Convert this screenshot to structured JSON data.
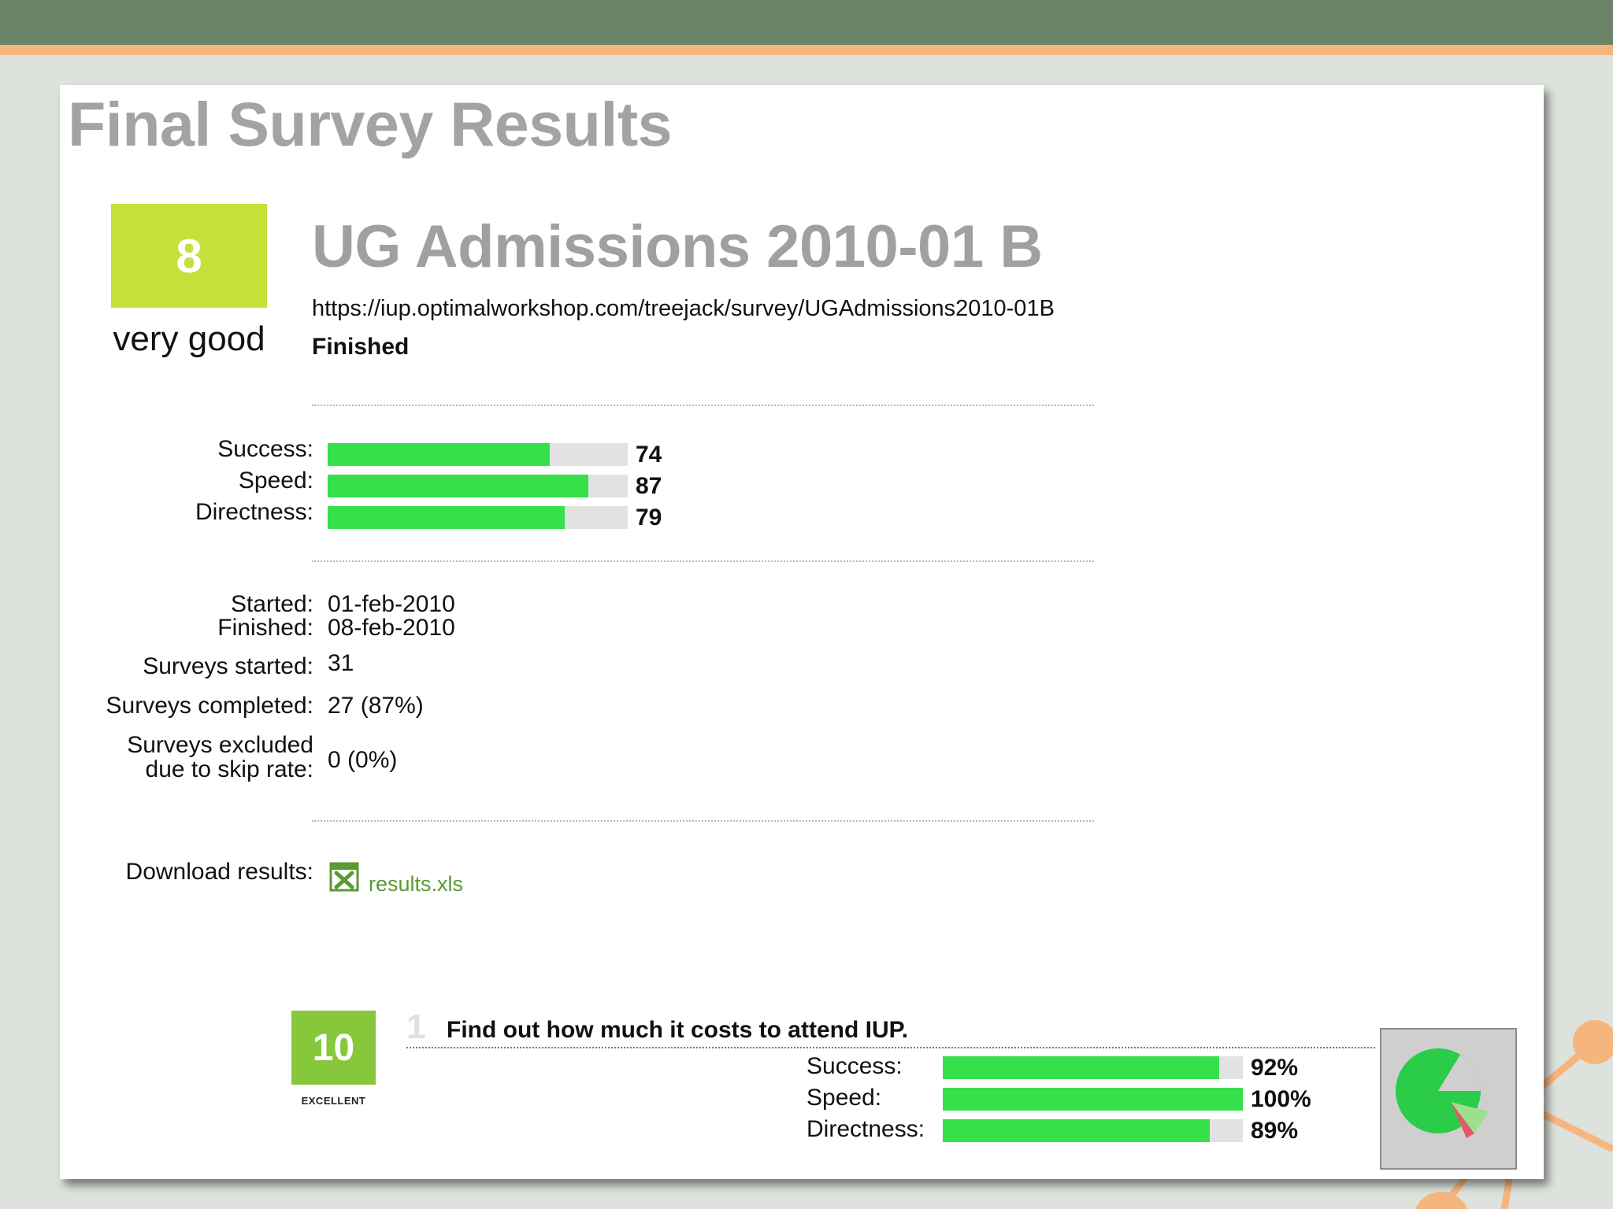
{
  "page": {
    "title": "Final Survey Results"
  },
  "survey": {
    "score": "8",
    "score_label": "very good",
    "name": "UG Admissions 2010-01 B",
    "url": "https://iup.optimalworkshop.com/treejack/survey/UGAdmissions2010-01B",
    "status": "Finished"
  },
  "metrics": [
    {
      "label": "Success:",
      "value": "74",
      "fraction": 0.74
    },
    {
      "label": "Speed:",
      "value": "87",
      "fraction": 0.87
    },
    {
      "label": "Directness:",
      "value": "79",
      "fraction": 0.79
    }
  ],
  "stats": {
    "started_label": "Started:",
    "started_value": "01-feb-2010",
    "finished_label": "Finished:",
    "finished_value": "08-feb-2010",
    "surveys_started_label": "Surveys started:",
    "surveys_started_value": "31",
    "surveys_completed_label": "Surveys completed:",
    "surveys_completed_value": "27 (87%)",
    "excluded_label_line1": "Surveys excluded",
    "excluded_label_line2": "due to skip rate:",
    "excluded_value": "0 (0%)"
  },
  "download": {
    "label": "Download results:",
    "file": "results.xls",
    "icon": "excel-file-icon"
  },
  "task": {
    "score": "10",
    "score_label": "EXCELLENT",
    "number": "1",
    "title": "Find out how much it costs to attend IUP.",
    "metrics": [
      {
        "label": "Success:",
        "value": "92%",
        "fraction": 0.92
      },
      {
        "label": "Speed:",
        "value": "100%",
        "fraction": 1.0
      },
      {
        "label": "Directness:",
        "value": "89%",
        "fraction": 0.89
      }
    ],
    "thumbnail_icon": "pie-chart-icon"
  },
  "colors": {
    "header": "#6b8467",
    "header_stripe": "#f7b57e",
    "score_good": "#c3e13a",
    "score_excellent": "#86c83a",
    "bar_fill": "#35e04b",
    "bar_track": "#e2e2e2",
    "link": "#5a9a33",
    "decor": "#f7b57e"
  }
}
